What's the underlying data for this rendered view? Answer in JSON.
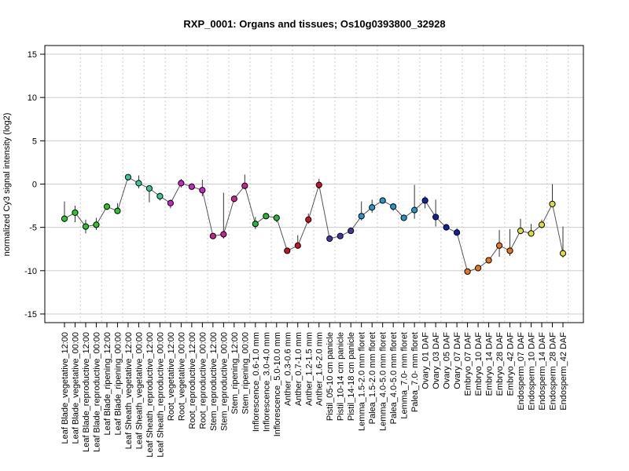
{
  "chart_data": {
    "type": "line",
    "title": "RXP_0001: Organs and tissues; Os10g0393800_32928",
    "xlabel": "",
    "ylabel": "normalized Cy3 signal intensity (log2)",
    "ylim": [
      -16,
      16
    ],
    "yticks": [
      -15,
      -10,
      -5,
      0,
      5,
      10,
      15
    ],
    "grid": true,
    "categories": [
      "Leaf Blade_vegetative_12:00",
      "Leaf Blade_vegetative_00:00",
      "Leaf Blade_reproductive_12:00",
      "Leaf Blade_reproductive_00:00",
      "Leaf Blade_ripening_12:00",
      "Leaf Blade_ripening_00:00",
      "Leaf Sheath_vegetative_12:00",
      "Leaf Sheath_vegetative_00:00",
      "Leaf Sheath_reproductive_12:00",
      "Leaf Sheath_reproductive_00:00",
      "Root_vegetative_12:00",
      "Root_vegetative_00:00",
      "Root_reproductive_12:00",
      "Root_reproductive_00:00",
      "Stem_reproductive_12:00",
      "Stem_reproductive_00:00",
      "Stem_ripening_12:00",
      "Stem_ripening_00:00",
      "Inflorescence_0.6-1.0 mm",
      "Inflorescence_3.0-4.0 mm",
      "Inflorescence_5.0-10.0 mm",
      "Anther_0.3-0.6 mm",
      "Anther_0.7-1.0 mm",
      "Anther_1.2-1.5 mm",
      "Anther_1.6-2.0 mm",
      "Pistil_05-10 cm panicle",
      "Pistil_10-14 cm panicle",
      "Pistil_14-18 cm panicle",
      "Lemma_1.5-2.0 mm floret",
      "Palea_1.5-2.0 mm floret",
      "Lemma_4.0-5.0 mm floret",
      "Palea_4.0-5.0 mm floret",
      "Lemma_7.0- mm floret",
      "Palea_7.0- mm floret",
      "Ovary_01 DAF",
      "Ovary_03 DAF",
      "Ovary_05 DAF",
      "Ovary_07 DAF",
      "Embryo_07 DAF",
      "Embryo_10 DAF",
      "Embryo_14 DAF",
      "Embryo_28 DAF",
      "Embryo_42 DAF",
      "Endosperm_07 DAF",
      "Endosperm_10 DAF",
      "Endosperm_14 DAF",
      "Endosperm_28 DAF",
      "Endosperm_42 DAF"
    ],
    "values": [
      -4.0,
      -3.3,
      -4.9,
      -4.7,
      -2.6,
      -3.1,
      0.8,
      0.1,
      -0.5,
      -1.4,
      -2.2,
      0.1,
      -0.3,
      -0.7,
      -6.0,
      -5.8,
      -1.7,
      -0.2,
      -4.6,
      -3.7,
      -3.9,
      -7.7,
      -7.1,
      -4.1,
      -0.1,
      -6.3,
      -6.0,
      -5.4,
      -3.7,
      -2.7,
      -1.9,
      -2.6,
      -3.9,
      -3.0,
      -1.9,
      -3.8,
      -5.0,
      -5.6,
      -10.1,
      -9.7,
      -8.8,
      -7.1,
      -7.7,
      -5.4,
      -5.7,
      -4.7,
      -2.3,
      -8.0
    ],
    "error_high": [
      -2.0,
      -2.5,
      -4.1,
      -3.9,
      -2.2,
      -2.2,
      1.0,
      1.0,
      -0.2,
      -1.0,
      -1.8,
      0.6,
      0.1,
      0.5,
      -5.8,
      -1.0,
      -1.4,
      1.1,
      -3.8,
      -3.5,
      -3.7,
      -7.4,
      -5.9,
      -3.4,
      0.6,
      -6.1,
      -5.7,
      -5.0,
      -2.0,
      -1.8,
      -1.7,
      -2.2,
      -3.6,
      -0.1,
      -1.4,
      -1.8,
      -4.6,
      -5.1,
      -9.9,
      -9.5,
      -8.5,
      -5.3,
      -5.2,
      -4.0,
      -4.6,
      -4.1,
      0.0,
      -4.9
    ],
    "error_low": [
      -4.4,
      -4.4,
      -5.7,
      -5.3,
      -3.0,
      -3.4,
      0.4,
      -0.5,
      -2.1,
      -1.9,
      -2.8,
      -0.4,
      -0.6,
      -1.4,
      -6.3,
      -6.3,
      -2.1,
      -0.6,
      -5.2,
      -4.0,
      -4.4,
      -8.0,
      -7.3,
      -4.6,
      -0.5,
      -6.6,
      -6.3,
      -5.7,
      -4.2,
      -3.3,
      -2.2,
      -3.1,
      -4.2,
      -4.0,
      -2.8,
      -4.9,
      -5.3,
      -5.9,
      -10.4,
      -10.0,
      -9.0,
      -8.4,
      -8.3,
      -5.8,
      -6.0,
      -5.1,
      -2.6,
      -8.5
    ],
    "colors": [
      "#22cc22",
      "#22cc22",
      "#22cc22",
      "#22cc22",
      "#22cc22",
      "#22cc22",
      "#33cc99",
      "#33cc99",
      "#33cc99",
      "#33cc99",
      "#cc22cc",
      "#cc22cc",
      "#cc22cc",
      "#cc22cc",
      "#cc2299",
      "#cc2299",
      "#cc2299",
      "#cc2299",
      "#22bb33",
      "#22bb33",
      "#22bb33",
      "#cc1122",
      "#cc1122",
      "#cc1122",
      "#cc1122",
      "#4433aa",
      "#4433aa",
      "#4433aa",
      "#2299cc",
      "#2299cc",
      "#2299cc",
      "#2299cc",
      "#2299cc",
      "#2299cc",
      "#1122aa",
      "#1122aa",
      "#1122aa",
      "#1122aa",
      "#ee7711",
      "#ee7711",
      "#ee7711",
      "#ee7711",
      "#ee7711",
      "#dddd33",
      "#dddd33",
      "#dddd33",
      "#dddd33",
      "#dddd33"
    ]
  }
}
